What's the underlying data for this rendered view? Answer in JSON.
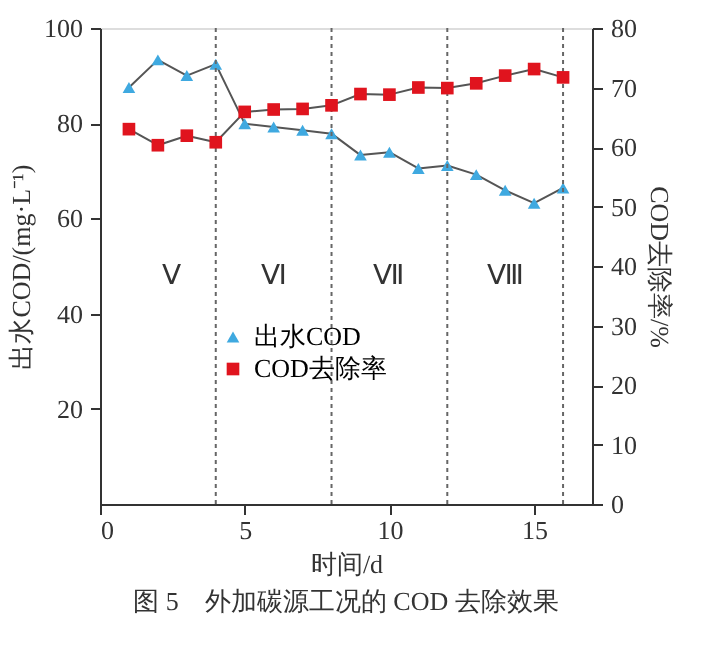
{
  "chart_data": {
    "type": "line",
    "x": [
      1,
      2,
      3,
      4,
      5,
      6,
      7,
      8,
      9,
      10,
      11,
      12,
      13,
      14,
      15,
      16
    ],
    "series": [
      {
        "name": "出水COD",
        "color": "#3fa9e0",
        "marker": "triangle",
        "values": [
          87.5,
          93.3,
          90,
          92.4,
          79.9,
          79.2,
          78.5,
          77.8,
          73.3,
          73.9,
          70.5,
          71.1,
          69.2,
          65.9,
          63.2,
          66.4
        ]
      },
      {
        "name": "COD去除率",
        "color": "#e0141e",
        "marker": "square",
        "axis": "y2",
        "values": [
          63,
          60.3,
          61.9,
          60.8,
          65.9,
          66.3,
          66.4,
          67,
          68.9,
          68.8,
          70,
          69.9,
          70.7,
          72,
          73.1,
          71.7
        ]
      }
    ],
    "xlabel": "时间/d",
    "ylabel": "出水COD/(mg·L⁻¹)",
    "y2label": "COD去除率/%",
    "xlim": [
      0,
      17
    ],
    "xticks": [
      0,
      5,
      10,
      15
    ],
    "ylim": [
      0,
      100
    ],
    "yticks": [
      20,
      40,
      60,
      80,
      100
    ],
    "y2lim": [
      0,
      80
    ],
    "y2ticks": [
      0,
      10,
      20,
      30,
      40,
      50,
      60,
      70,
      80
    ],
    "ref_lines": [
      {
        "axis": "x",
        "value": 4,
        "line_style": "dotted",
        "color": "#666666"
      },
      {
        "axis": "x",
        "value": 8,
        "line_style": "dotted",
        "color": "#666666"
      },
      {
        "axis": "x",
        "value": 12,
        "line_style": "dotted",
        "color": "#666666"
      },
      {
        "axis": "x",
        "value": 16,
        "line_style": "dotted",
        "color": "#666666"
      }
    ],
    "annotations": [
      "Ⅴ",
      "Ⅵ",
      "Ⅶ",
      "Ⅷ",
      "图 5　外加碳源工况的 COD 去除效果"
    ],
    "legend": "bottom left",
    "grid": false,
    "line_style": "solid"
  }
}
